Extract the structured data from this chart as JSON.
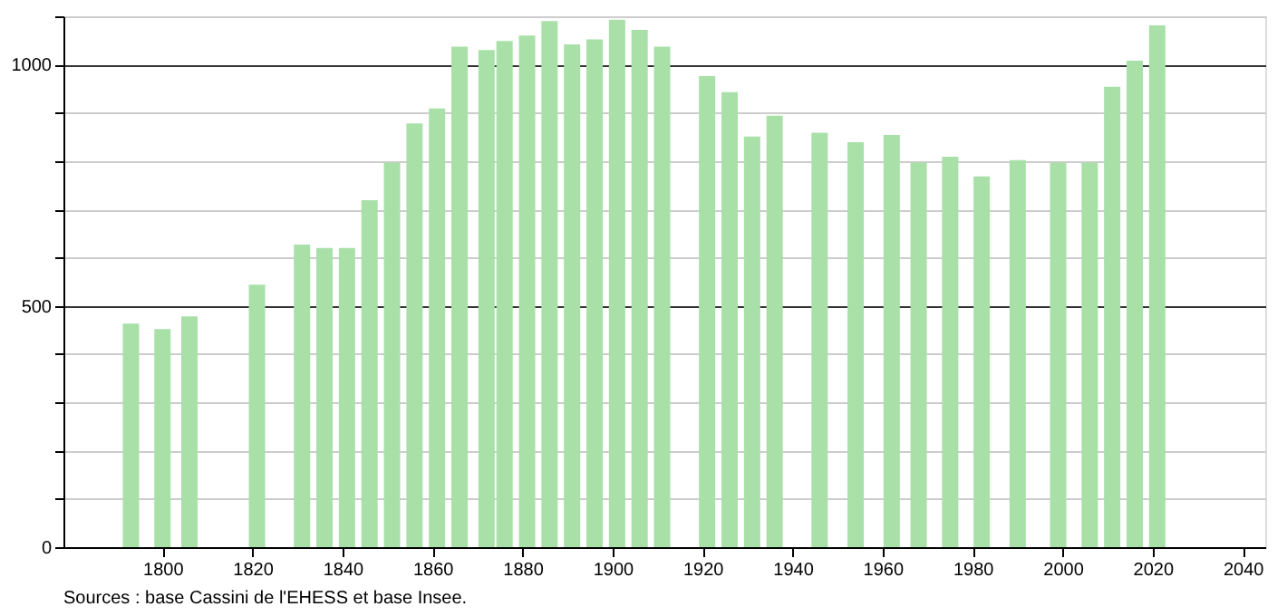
{
  "chart_data": {
    "type": "bar",
    "x": [
      1793,
      1800,
      1806,
      1821,
      1831,
      1836,
      1841,
      1846,
      1851,
      1856,
      1861,
      1866,
      1872,
      1876,
      1881,
      1886,
      1891,
      1896,
      1901,
      1906,
      1911,
      1921,
      1926,
      1931,
      1936,
      1946,
      1954,
      1962,
      1968,
      1975,
      1982,
      1990,
      1999,
      2006,
      2011,
      2016,
      2021
    ],
    "values": [
      463,
      452,
      478,
      544,
      627,
      620,
      620,
      719,
      797,
      878,
      909,
      1037,
      1030,
      1049,
      1060,
      1090,
      1042,
      1052,
      1093,
      1072,
      1037,
      976,
      943,
      851,
      894,
      859,
      839,
      854,
      797,
      809,
      768,
      802,
      797,
      797,
      954,
      1008,
      1081
    ],
    "color": "#a8e0a8",
    "xlim": [
      1778,
      2045
    ],
    "xticks": [
      1800,
      1820,
      1840,
      1860,
      1880,
      1900,
      1920,
      1940,
      1960,
      1980,
      2000,
      2020,
      2040
    ],
    "ylim": [
      0,
      1100
    ],
    "yticks": [
      0,
      {
        "value": 100,
        "label": null
      },
      {
        "value": 200,
        "label": null
      },
      {
        "value": 300,
        "label": null
      },
      {
        "value": 400,
        "label": null
      },
      500,
      {
        "value": 600,
        "label": null
      },
      {
        "value": 700,
        "label": null
      },
      {
        "value": 800,
        "label": null
      },
      {
        "value": 900,
        "label": null
      },
      1000,
      {
        "value": 1100,
        "label": null
      }
    ],
    "grid": "y",
    "annotations": [
      "Sources : base Cassini de l'EHESS et base Insee."
    ]
  }
}
